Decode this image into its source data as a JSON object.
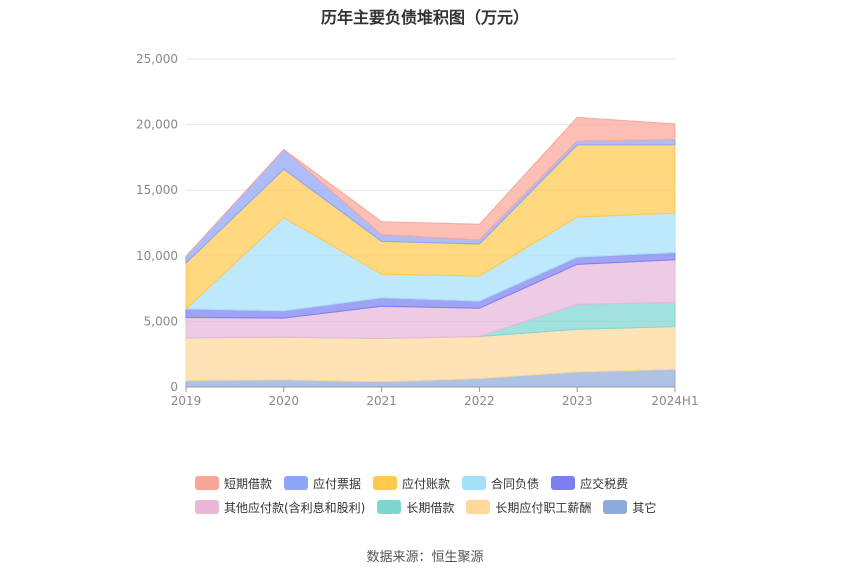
{
  "title": "历年主要负债堆积图（万元）",
  "source": "数据来源：恒生聚源",
  "chart_data": {
    "type": "area",
    "stacked": true,
    "title": "历年主要负债堆积图（万元）",
    "categories": [
      "2019",
      "2020",
      "2021",
      "2022",
      "2023",
      "2024H1"
    ],
    "y_ticks": [
      "0",
      "5,000",
      "10,000",
      "15,000",
      "20,000",
      "25,000"
    ],
    "ylim": [
      0,
      25000
    ],
    "grid": true,
    "legend_position": "bottom",
    "series": [
      {
        "name": "其它",
        "color": "#8eaadb",
        "values": [
          500,
          550,
          400,
          650,
          1150,
          1350
        ]
      },
      {
        "name": "长期应付职工薪酬",
        "color": "#ffd89a",
        "values": [
          3250,
          3250,
          3300,
          3200,
          3250,
          3250
        ]
      },
      {
        "name": "长期借款",
        "color": "#7fd6d1",
        "values": [
          0,
          0,
          0,
          0,
          1900,
          1850
        ]
      },
      {
        "name": "其他应付款(含利息和股利)",
        "color": "#e8b7da",
        "values": [
          1550,
          1450,
          2450,
          2150,
          3050,
          3250
        ]
      },
      {
        "name": "应交税费",
        "color": "#7b7ff0",
        "values": [
          650,
          550,
          650,
          550,
          550,
          550
        ]
      },
      {
        "name": "合同负债",
        "color": "#a5e0fb",
        "values": [
          0,
          7100,
          1800,
          1900,
          3050,
          3000
        ]
      },
      {
        "name": "应付账款",
        "color": "#ffc94d",
        "values": [
          3500,
          3700,
          2500,
          2450,
          5500,
          5200
        ]
      },
      {
        "name": "应付票据",
        "color": "#8ea4f7",
        "values": [
          500,
          1500,
          500,
          300,
          300,
          400
        ]
      },
      {
        "name": "短期借款",
        "color": "#f9a69a",
        "values": [
          0,
          0,
          1000,
          1200,
          1800,
          1200
        ]
      }
    ]
  },
  "legend": [
    [
      {
        "label": "短期借款",
        "color": "#f9a69a"
      },
      {
        "label": "应付票据",
        "color": "#8ea4f7"
      },
      {
        "label": "应付账款",
        "color": "#ffc94d"
      },
      {
        "label": "合同负债",
        "color": "#a5e0fb"
      },
      {
        "label": "应交税费",
        "color": "#7b7ff0"
      }
    ],
    [
      {
        "label": "其他应付款(含利息和股利)",
        "color": "#e8b7da"
      },
      {
        "label": "长期借款",
        "color": "#7fd6d1"
      },
      {
        "label": "长期应付职工薪酬",
        "color": "#ffd89a"
      },
      {
        "label": "其它",
        "color": "#8eaadb"
      }
    ]
  ]
}
